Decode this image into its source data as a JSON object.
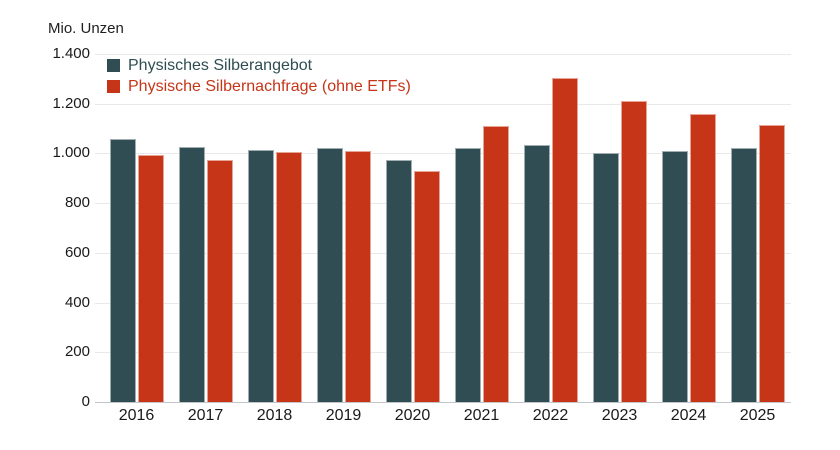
{
  "chart_data": {
    "type": "bar",
    "title": "",
    "ylabel": "Mio. Unzen",
    "xlabel": "",
    "categories": [
      "2016",
      "2017",
      "2018",
      "2019",
      "2020",
      "2021",
      "2022",
      "2023",
      "2024",
      "2025"
    ],
    "series": [
      {
        "name": "Physisches Silberangebot",
        "color": "#2f4d52",
        "values": [
          1060,
          1025,
          1015,
          1020,
          975,
          1020,
          1035,
          1000,
          1010,
          1020
        ]
      },
      {
        "name": "Physische Silbernachfrage (ohne ETFs)",
        "color": "#c63518",
        "values": [
          995,
          975,
          1005,
          1010,
          930,
          1110,
          1305,
          1210,
          1160,
          1115
        ]
      }
    ],
    "ylim": [
      0,
      1400
    ],
    "yticks": [
      {
        "v": 0,
        "label": "0"
      },
      {
        "v": 200,
        "label": "200"
      },
      {
        "v": 400,
        "label": "400"
      },
      {
        "v": 600,
        "label": "600"
      },
      {
        "v": 800,
        "label": "800"
      },
      {
        "v": 1000,
        "label": "1.000"
      },
      {
        "v": 1200,
        "label": "1.200"
      },
      {
        "v": 1400,
        "label": "1.400"
      }
    ],
    "grid": true,
    "legend_position": "top-left",
    "number_format": "de-thousands-dot"
  },
  "colors": {
    "background": "#ffffff",
    "gridline": "#e9e9e9",
    "axis_line": "#c2c6c8",
    "text": "#1a1a1a"
  }
}
